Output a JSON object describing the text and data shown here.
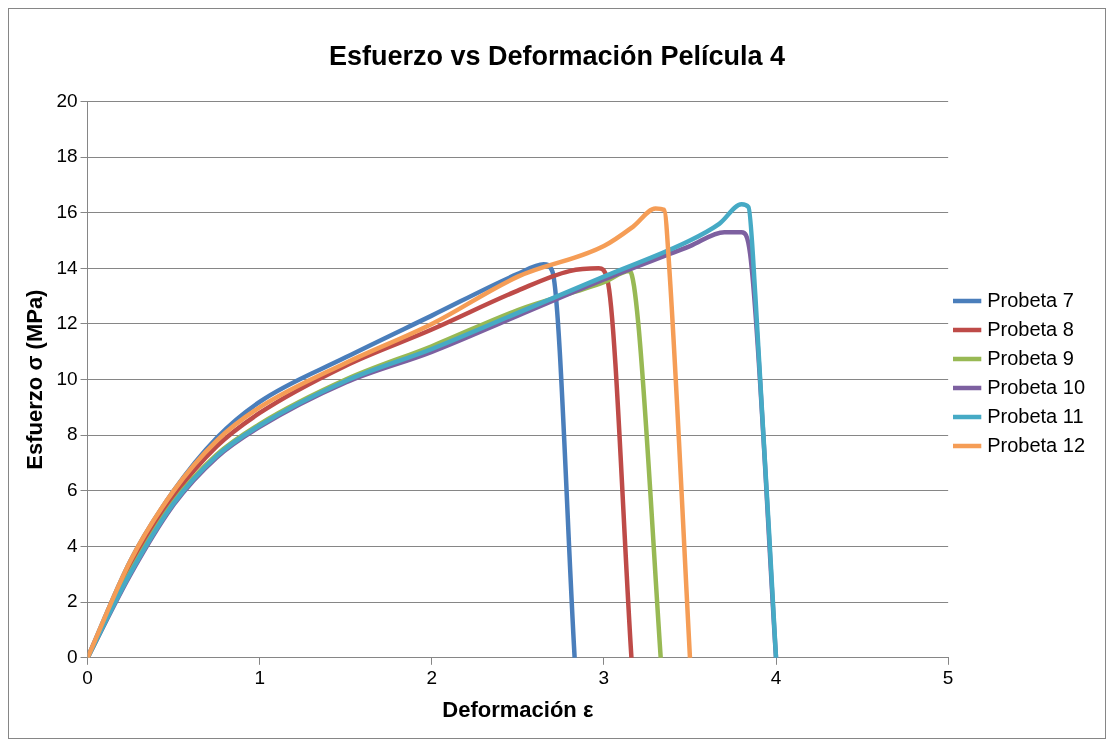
{
  "chart_data": {
    "type": "line",
    "title": "Esfuerzo vs Deformación Película 4",
    "xlabel": "Deformación ε",
    "ylabel": "Esfuerzo σ (MPa)",
    "xlim": [
      0,
      5
    ],
    "xticks": [
      0,
      1,
      2,
      3,
      4,
      5
    ],
    "ylim": [
      0,
      20
    ],
    "yticks": [
      0,
      2,
      4,
      6,
      8,
      10,
      12,
      14,
      16,
      18,
      20
    ],
    "grid": "y",
    "legend": "right",
    "marker": "none",
    "line_style": "solid",
    "series": [
      {
        "name": "Probeta 7",
        "color": "#4a7ebb",
        "x": [
          0,
          0.25,
          0.5,
          0.75,
          1,
          1.5,
          2,
          2.5,
          2.65,
          2.7,
          2.83
        ],
        "values": [
          0,
          3.5,
          6.0,
          7.9,
          9.2,
          10.8,
          12.3,
          13.8,
          14.15,
          13.9,
          0
        ]
      },
      {
        "name": "Probeta 8",
        "color": "#be4b48",
        "x": [
          0,
          0.25,
          0.5,
          0.75,
          1,
          1.5,
          2,
          2.5,
          2.8,
          2.97,
          3.02,
          3.16
        ],
        "values": [
          0,
          3.3,
          5.8,
          7.6,
          8.8,
          10.5,
          11.8,
          13.2,
          13.9,
          14.0,
          13.6,
          0
        ]
      },
      {
        "name": "Probeta 9",
        "color": "#98b954",
        "x": [
          0,
          0.25,
          0.5,
          0.75,
          1,
          1.5,
          2,
          2.5,
          3,
          3.15,
          3.2,
          3.33
        ],
        "values": [
          0,
          3.1,
          5.6,
          7.3,
          8.4,
          10.0,
          11.2,
          12.5,
          13.5,
          13.9,
          12,
          0
        ]
      },
      {
        "name": "Probeta 10",
        "color": "#7d60a0",
        "x": [
          0,
          0.25,
          0.5,
          0.75,
          1,
          1.5,
          2,
          2.5,
          3,
          3.5,
          3.7,
          3.8,
          3.85,
          4.0
        ],
        "values": [
          0,
          3.0,
          5.5,
          7.2,
          8.3,
          9.9,
          11.0,
          12.3,
          13.6,
          14.8,
          15.3,
          15.3,
          14.5,
          0
        ]
      },
      {
        "name": "Probeta 11",
        "color": "#46aac5",
        "x": [
          0,
          0.25,
          0.5,
          0.75,
          1,
          1.5,
          2,
          2.5,
          3,
          3.5,
          3.67,
          3.8,
          3.84,
          3.88,
          4.0
        ],
        "values": [
          0,
          3.05,
          5.55,
          7.25,
          8.35,
          9.95,
          11.1,
          12.4,
          13.7,
          15.0,
          15.6,
          16.3,
          16.2,
          13,
          0
        ]
      },
      {
        "name": "Probeta 12",
        "color": "#f59d56",
        "x": [
          0,
          0.25,
          0.5,
          0.75,
          1,
          1.5,
          2,
          2.5,
          3,
          3.17,
          3.3,
          3.35,
          3.38,
          3.5
        ],
        "values": [
          0,
          3.5,
          6.0,
          7.8,
          9.0,
          10.6,
          12.0,
          13.7,
          14.8,
          15.5,
          16.15,
          16.1,
          14,
          0
        ]
      }
    ]
  }
}
